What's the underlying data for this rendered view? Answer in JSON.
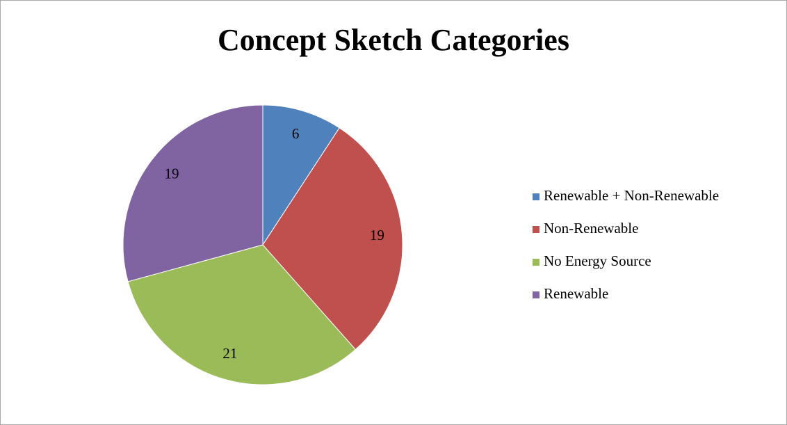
{
  "chart_data": {
    "type": "pie",
    "title": "Concept Sketch Categories",
    "categories": [
      "Renewable + Non-Renewable",
      "Non-Renewable",
      "No Energy Source",
      "Renewable"
    ],
    "values": [
      6,
      19,
      21,
      19
    ],
    "colors": [
      "#4f81bd",
      "#c0504d",
      "#9bbb59",
      "#8064a2"
    ],
    "legend": "right"
  }
}
